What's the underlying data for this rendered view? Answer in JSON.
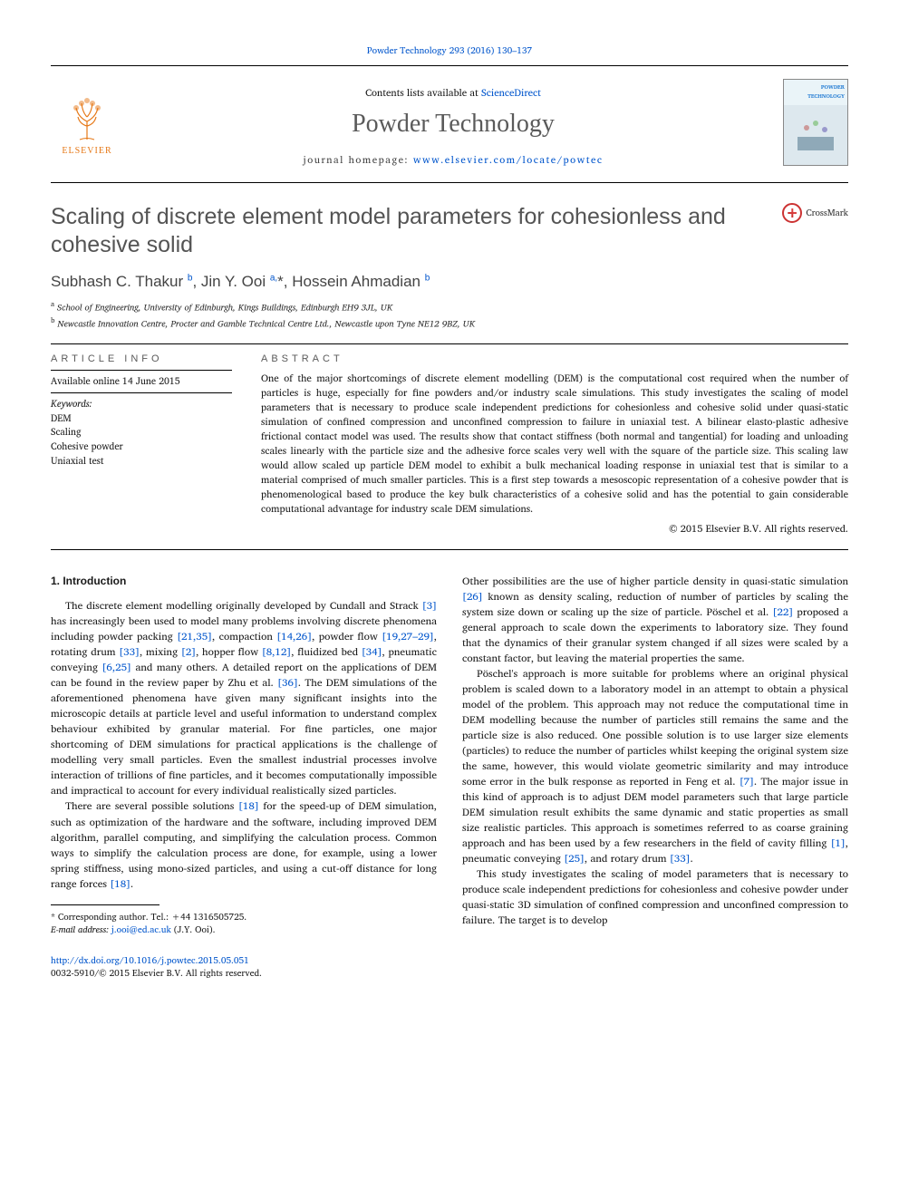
{
  "journal": {
    "citation_line": "Powder Technology 293 (2016) 130–137",
    "contents_prefix": "Contents lists available at ",
    "contents_link": "ScienceDirect",
    "title": "Powder Technology",
    "homepage_prefix": "journal homepage: ",
    "homepage_url": "www.elsevier.com/locate/powtec",
    "publisher_name": "ELSEVIER",
    "cover_label": "POWDER TECHNOLOGY"
  },
  "article": {
    "title": "Scaling of discrete element model parameters for cohesionless and cohesive solid",
    "crossmark_label": "CrossMark",
    "authors_html": "Subhash C. Thakur <sup>b</sup>, Jin Y. Ooi <sup>a,</sup>*, Hossein Ahmadian <sup>b</sup>",
    "affiliations": [
      {
        "marker": "a",
        "text": "School of Engineering, University of Edinburgh, Kings Buildings, Edinburgh EH9 3JL, UK"
      },
      {
        "marker": "b",
        "text": "Newcastle Innovation Centre, Procter and Gamble Technical Centre Ltd., Newcastle upon Tyne NE12 9BZ, UK"
      }
    ]
  },
  "info": {
    "heading": "ARTICLE INFO",
    "available": "Available online 14 June 2015",
    "keywords_label": "Keywords:",
    "keywords": [
      "DEM",
      "Scaling",
      "Cohesive powder",
      "Uniaxial test"
    ]
  },
  "abstract": {
    "heading": "ABSTRACT",
    "text": "One of the major shortcomings of discrete element modelling (DEM) is the computational cost required when the number of particles is huge, especially for fine powders and/or industry scale simulations. This study investigates the scaling of model parameters that is necessary to produce scale independent predictions for cohesionless and cohesive solid under quasi-static simulation of confined compression and unconfined compression to failure in uniaxial test. A bilinear elasto-plastic adhesive frictional contact model was used. The results show that contact stiffness (both normal and tangential) for loading and unloading scales linearly with the particle size and the adhesive force scales very well with the square of the particle size. This scaling law would allow scaled up particle DEM model to exhibit a bulk mechanical loading response in uniaxial test that is similar to a material comprised of much smaller particles. This is a first step towards a mesoscopic representation of a cohesive powder that is phenomenological based to produce the key bulk characteristics of a cohesive solid and has the potential to gain considerable computational advantage for industry scale DEM simulations.",
    "copyright": "© 2015 Elsevier B.V. All rights reserved."
  },
  "section1": {
    "heading": "1. Introduction",
    "p1_pre": "The discrete element modelling originally developed by Cundall and Strack ",
    "r3": "[3]",
    "p1_a": " has increasingly been used to model many problems involving discrete phenomena including powder packing ",
    "r21_35": "[21,35]",
    "p1_b": ", compaction ",
    "r14_26": "[14,26]",
    "p1_c": ", powder flow ",
    "r19_27_29": "[19,27–29]",
    "p1_d": ", rotating drum ",
    "r33": "[33]",
    "p1_e": ", mixing ",
    "r2": "[2]",
    "p1_f": ", hopper flow ",
    "r8_12": "[8,12]",
    "p1_g": ", fluidized bed ",
    "r34": "[34]",
    "p1_h": ", pneumatic conveying ",
    "r6_25": "[6,25]",
    "p1_i": " and many others. A detailed report on the applications of DEM can be found in the review paper by Zhu et al. ",
    "r36": "[36]",
    "p1_j": ". The DEM simulations of the aforementioned phenomena have given many significant insights into the microscopic details at particle level and useful information to understand complex behaviour exhibited by granular material. For fine particles, one major shortcoming of DEM simulations for practical applications is the challenge of modelling very small particles. Even the smallest industrial processes involve interaction of trillions of fine particles, and it becomes computationally impossible and impractical to account for every individual realistically sized particles.",
    "p2_a": "There are several possible solutions ",
    "r18a": "[18]",
    "p2_b": " for the speed-up of DEM simulation, such as optimization of the hardware and the software, including improved DEM algorithm, parallel computing, and simplifying the calculation process. Common ways to simplify the calculation process are done, for example, using a lower spring stiffness, using mono-sized particles, and using a cut-off distance for long range forces ",
    "r18b": "[18]",
    "p2_c": ".",
    "p3_a": "Other possibilities are the use of higher particle density in quasi-static simulation ",
    "r26": "[26]",
    "p3_b": " known as density scaling, reduction of number of particles by scaling the system size down or scaling up the size of particle. Pöschel et al. ",
    "r22": "[22]",
    "p3_c": " proposed a general approach to scale down the experiments to laboratory size. They found that the dynamics of their granular system changed if all sizes were scaled by a constant factor, but leaving the material properties the same.",
    "p4_a": "Pöschel's approach is more suitable for problems where an original physical problem is scaled down to a laboratory model in an attempt to obtain a physical model of the problem. This approach may not reduce the computational time in DEM modelling because the number of particles still remains the same and the particle size is also reduced. One possible solution is to use larger size elements (particles) to reduce the number of particles whilst keeping the original system size the same, however, this would violate geometric similarity and may introduce some error in the bulk response as reported in Feng et al. ",
    "r7": "[7]",
    "p4_b": ". The major issue in this kind of approach is to adjust DEM model parameters such that large particle DEM simulation result exhibits the same dynamic and static properties as small size realistic particles. This approach is sometimes referred to as coarse graining approach and has been used by a few researchers in the field of cavity filling ",
    "r1": "[1]",
    "p4_c": ", pneumatic conveying ",
    "r25": "[25]",
    "p4_d": ", and rotary drum ",
    "r33b": "[33]",
    "p4_e": ".",
    "p5": "This study investigates the scaling of model parameters that is necessary to produce scale independent predictions for cohesionless and cohesive powder under quasi-static 3D simulation of confined compression and unconfined compression to failure. The target is to develop"
  },
  "footnote": {
    "corr_label": "* Corresponding author. Tel.: +44 1316505725.",
    "email_label": "E-mail address: ",
    "email": "j.ooi@ed.ac.uk",
    "email_owner": " (J.Y. Ooi)."
  },
  "doi": {
    "url": "http://dx.doi.org/10.1016/j.powtec.2015.05.051",
    "issn_line": "0032-5910/© 2015 Elsevier B.V. All rights reserved."
  },
  "colors": {
    "link": "#0055cc",
    "heading_gray": "#5a5a5a",
    "elsevier_orange": "#e67817"
  }
}
